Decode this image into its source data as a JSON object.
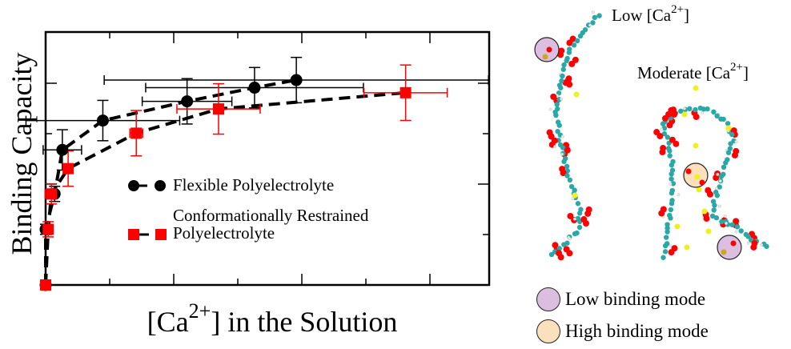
{
  "chart_data": {
    "type": "scatter",
    "title": "",
    "xlabel": "[Ca2+] in the Solution",
    "ylabel": "Binding Capacity",
    "xlim": [
      0,
      6.9
    ],
    "ylim": [
      0,
      5
    ],
    "x_ticks": [
      0,
      1,
      2,
      3,
      4,
      5,
      6
    ],
    "y_ticks": [
      0,
      1,
      2,
      3,
      4
    ],
    "tick_labels_shown": false,
    "grid": false,
    "legend_position": "center-left inside plot",
    "series": [
      {
        "name": "Flexible Polyelectrolyte",
        "color": "#000000",
        "marker": "circle",
        "line": "dashed",
        "x": [
          0,
          0.0,
          0.14,
          0.26,
          0.89,
          2.2,
          3.25,
          3.9
        ],
        "y": [
          0,
          1.1,
          1.8,
          2.67,
          3.25,
          3.63,
          3.9,
          4.05
        ],
        "x_err": [
          0,
          0.02,
          0.05,
          0.3,
          1.2,
          0.7,
          1.7,
          3.0
        ],
        "y_err": [
          0,
          0.1,
          0.15,
          0.4,
          0.4,
          0.45,
          0.4,
          0.45
        ]
      },
      {
        "name": "Conformationally Restrained Polyelectrolyte",
        "color": "#ff0000",
        "marker": "square",
        "line": "dashed",
        "x": [
          0,
          0.04,
          0.09,
          0.35,
          1.41,
          2.69,
          5.6
        ],
        "y": [
          0,
          1.1,
          1.8,
          2.3,
          3.0,
          3.48,
          3.8
        ],
        "x_err": [
          0,
          0.05,
          0.1,
          0.05,
          0.1,
          0.65,
          0.65
        ],
        "y_err": [
          0,
          0.15,
          0.2,
          0.35,
          0.45,
          0.5,
          0.55
        ]
      }
    ]
  },
  "legend": {
    "series1": "Flexible Polyelectrolyte",
    "series2_line1": "Conformationally Restrained",
    "series2_line2": "Polyelectrolyte"
  },
  "axes": {
    "ylabel": "Binding Capacity",
    "xlabel_prefix": "[Ca",
    "xlabel_sup": "2+",
    "xlabel_suffix": "] in the Solution"
  },
  "molecules": {
    "low_label_prefix": "Low [Ca",
    "low_label_sup": "2+",
    "low_label_suffix": "]",
    "moderate_label_prefix": "Moderate [Ca",
    "moderate_label_sup": "2+",
    "moderate_label_suffix": "]"
  },
  "binding_modes": [
    {
      "label": "Low binding mode",
      "color": "#dcbfe0"
    },
    {
      "label": "High binding mode",
      "color": "#fbe0bd"
    }
  ],
  "colors": {
    "carbon": "#2aa8a8",
    "oxygen": "#ff0000",
    "hydrogen": "#e8e8e8",
    "calcium": "#f0f020"
  }
}
